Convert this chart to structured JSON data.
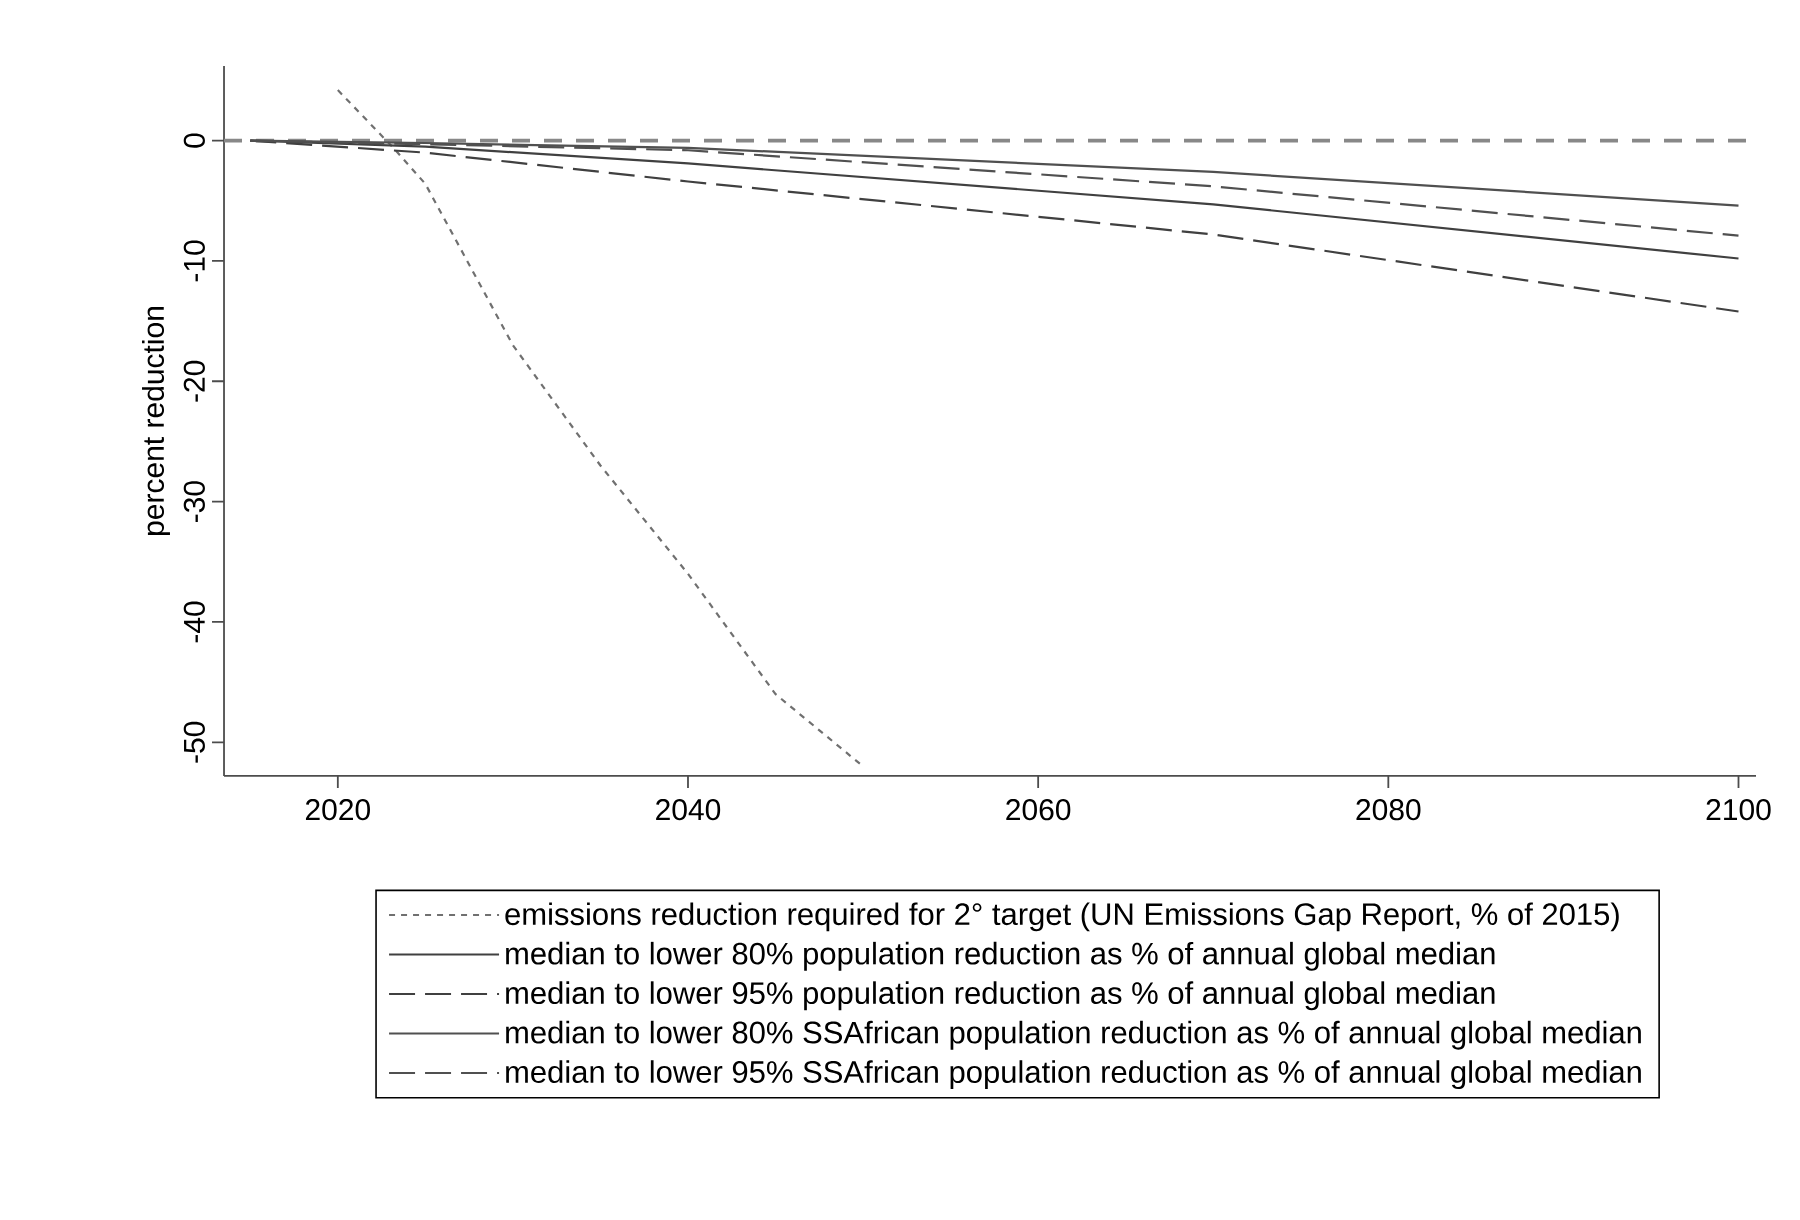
{
  "chart_data": {
    "type": "line",
    "ylabel": "percent reduction",
    "xlim": [
      2013.5,
      2101
    ],
    "ylim": [
      -52.8,
      6.2
    ],
    "xticks": [
      2020,
      2040,
      2060,
      2080,
      2100
    ],
    "yticks": [
      0,
      -10,
      -20,
      -30,
      -40,
      -50
    ],
    "legend": "bottom",
    "ref_lines": [
      {
        "axis": "y",
        "value": 0,
        "color": "#888888",
        "line_style": "dashed"
      }
    ],
    "series": [
      {
        "name": "emissions reduction required for 2° target (UN Emissions Gap Report, % of 2015)",
        "color": "#707070",
        "line_style": "dotted",
        "x": [
          2020,
          2023.3,
          2025,
          2030,
          2035,
          2040,
          2045,
          2050
        ],
        "values": [
          4.2,
          -0.8,
          -3.6,
          -17,
          -27,
          -36,
          -46,
          -52
        ]
      },
      {
        "name": "median to lower 80% population reduction as % of annual global median",
        "color": "#404040",
        "line_style": "solid",
        "x": [
          2015,
          2025,
          2040,
          2070,
          2100
        ],
        "values": [
          0,
          -0.5,
          -1.9,
          -5.3,
          -9.8
        ]
      },
      {
        "name": "median to lower 95% population reduction as % of annual global median",
        "color": "#404040",
        "line_style": "dashed",
        "x": [
          2015,
          2025,
          2040,
          2070,
          2100
        ],
        "values": [
          0,
          -1.0,
          -3.4,
          -7.8,
          -14.2
        ]
      },
      {
        "name": "median to lower 80% SSAfrican population reduction as % of annual global median",
        "color": "#505050",
        "line_style": "solid",
        "x": [
          2015,
          2025,
          2040,
          2070,
          2100
        ],
        "values": [
          0,
          -0.2,
          -0.6,
          -2.6,
          -5.4
        ]
      },
      {
        "name": "median to lower 95% SSAfrican population reduction as % of annual global median",
        "color": "#505050",
        "line_style": "dashed",
        "x": [
          2015,
          2025,
          2040,
          2070,
          2100
        ],
        "values": [
          0,
          -0.3,
          -0.8,
          -3.8,
          -7.9
        ]
      }
    ]
  }
}
